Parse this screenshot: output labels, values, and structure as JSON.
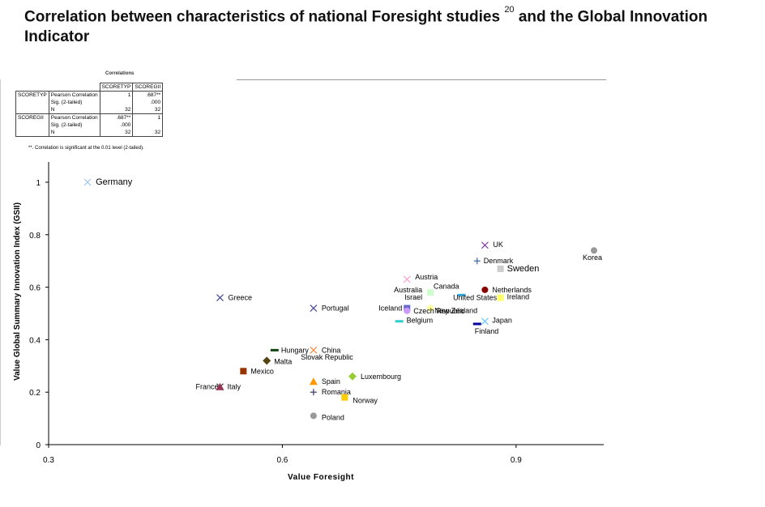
{
  "title": {
    "text": "Correlation between characteristics of national Foresight studies",
    "footnote": "20",
    "text2": "and the Global Innovation Indicator"
  },
  "corr_table": {
    "caption": "Correlations",
    "headers": [
      "",
      "",
      "SCORETYP",
      "SCOREGII"
    ],
    "rows": [
      [
        "SCORETYP",
        "Pearson Correlation",
        "1",
        ".687**"
      ],
      [
        "",
        "Sig. (2-tailed)",
        "",
        ".000"
      ],
      [
        "",
        "N",
        "32",
        "32"
      ],
      [
        "SCOREGII",
        "Pearson Correlation",
        ".687**",
        "1"
      ],
      [
        "",
        "Sig. (2-tailed)",
        ".000",
        ""
      ],
      [
        "",
        "N",
        "32",
        "32"
      ]
    ],
    "note": "**. Correlation is significant at the 0.01 level (2-tailed)."
  },
  "chart_data": {
    "type": "scatter",
    "xlabel": "Value Foresight",
    "ylabel": "Value Global Summary Innovation Index (GSII)",
    "xlim": [
      0.3,
      1.0
    ],
    "ylim": [
      0,
      1.0
    ],
    "xticks": [
      "0.3",
      "0.6",
      "0.9"
    ],
    "yticks": [
      "0",
      "0.2",
      "0.4",
      "0.6",
      "0.8",
      "1"
    ],
    "points": [
      {
        "label": "Germany",
        "x": 0.35,
        "y": 1.0,
        "marker": "x",
        "color": "#99c4f0"
      },
      {
        "label": "Greece",
        "x": 0.52,
        "y": 0.56,
        "marker": "x",
        "color": "#444499"
      },
      {
        "label": "Portugal",
        "x": 0.64,
        "y": 0.52,
        "marker": "x",
        "color": "#444499"
      },
      {
        "label": "Hungary",
        "x": 0.59,
        "y": 0.36,
        "marker": "dash",
        "color": "#114411"
      },
      {
        "label": "China",
        "x": 0.64,
        "y": 0.36,
        "marker": "x",
        "color": "#ff8833"
      },
      {
        "label": "Malta",
        "x": 0.58,
        "y": 0.32,
        "marker": "diamond",
        "color": "#554411"
      },
      {
        "label": "Slovak Republic",
        "x": 0.63,
        "y": 0.33,
        "marker": "none",
        "color": "#000000"
      },
      {
        "label": "Mexico",
        "x": 0.55,
        "y": 0.28,
        "marker": "square",
        "color": "#993300"
      },
      {
        "label": "France",
        "x": 0.52,
        "y": 0.22,
        "marker": "x",
        "color": "#444444"
      },
      {
        "label": "Italy",
        "x": 0.52,
        "y": 0.22,
        "marker": "triangle",
        "color": "#993355"
      },
      {
        "label": "Spain",
        "x": 0.64,
        "y": 0.24,
        "marker": "triangle",
        "color": "#ff9900"
      },
      {
        "label": "Romania",
        "x": 0.64,
        "y": 0.2,
        "marker": "plus",
        "color": "#333366"
      },
      {
        "label": "Luxembourg",
        "x": 0.69,
        "y": 0.26,
        "marker": "diamond",
        "color": "#99cc33"
      },
      {
        "label": "Norway",
        "x": 0.68,
        "y": 0.18,
        "marker": "square",
        "color": "#ffcc00"
      },
      {
        "label": "Poland",
        "x": 0.64,
        "y": 0.11,
        "marker": "circle",
        "color": "#999999"
      },
      {
        "label": "Austria",
        "x": 0.76,
        "y": 0.63,
        "marker": "x",
        "color": "#ff99cc"
      },
      {
        "label": "Australia",
        "x": 0.79,
        "y": 0.58,
        "marker": "none",
        "color": "#000000"
      },
      {
        "label": "Israel",
        "x": 0.79,
        "y": 0.58,
        "marker": "square",
        "color": "#ccffcc"
      },
      {
        "label": "New Zealand",
        "x": 0.79,
        "y": 0.52,
        "marker": "circle",
        "color": "#ffff99"
      },
      {
        "label": "Iceland",
        "x": 0.76,
        "y": 0.52,
        "marker": "square",
        "color": "#6666cc"
      },
      {
        "label": "Czech Republic",
        "x": 0.76,
        "y": 0.51,
        "marker": "circle",
        "color": "#cc99ff"
      },
      {
        "label": "Belgium",
        "x": 0.75,
        "y": 0.47,
        "marker": "dash",
        "color": "#33cccc"
      },
      {
        "label": "Canada",
        "x": 0.83,
        "y": 0.57,
        "marker": "dash",
        "color": "#33aadd"
      },
      {
        "label": "United States",
        "x": 0.84,
        "y": 0.56,
        "marker": "none",
        "color": "#000000"
      },
      {
        "label": "UK",
        "x": 0.86,
        "y": 0.76,
        "marker": "x",
        "color": "#7733aa"
      },
      {
        "label": "Denmark",
        "x": 0.85,
        "y": 0.7,
        "marker": "plus",
        "color": "#336699"
      },
      {
        "label": "Sweden",
        "x": 0.88,
        "y": 0.67,
        "marker": "square",
        "color": "#cccccc"
      },
      {
        "label": "Netherlands",
        "x": 0.86,
        "y": 0.59,
        "marker": "circle",
        "color": "#880000"
      },
      {
        "label": "Ireland",
        "x": 0.88,
        "y": 0.56,
        "marker": "square",
        "color": "#ffff66"
      },
      {
        "label": "Japan",
        "x": 0.86,
        "y": 0.47,
        "marker": "x",
        "color": "#66ccff"
      },
      {
        "label": "Finland",
        "x": 0.85,
        "y": 0.46,
        "marker": "dash",
        "color": "#000099"
      },
      {
        "label": "Korea",
        "x": 1.0,
        "y": 0.74,
        "marker": "circle",
        "color": "#999999"
      }
    ]
  }
}
